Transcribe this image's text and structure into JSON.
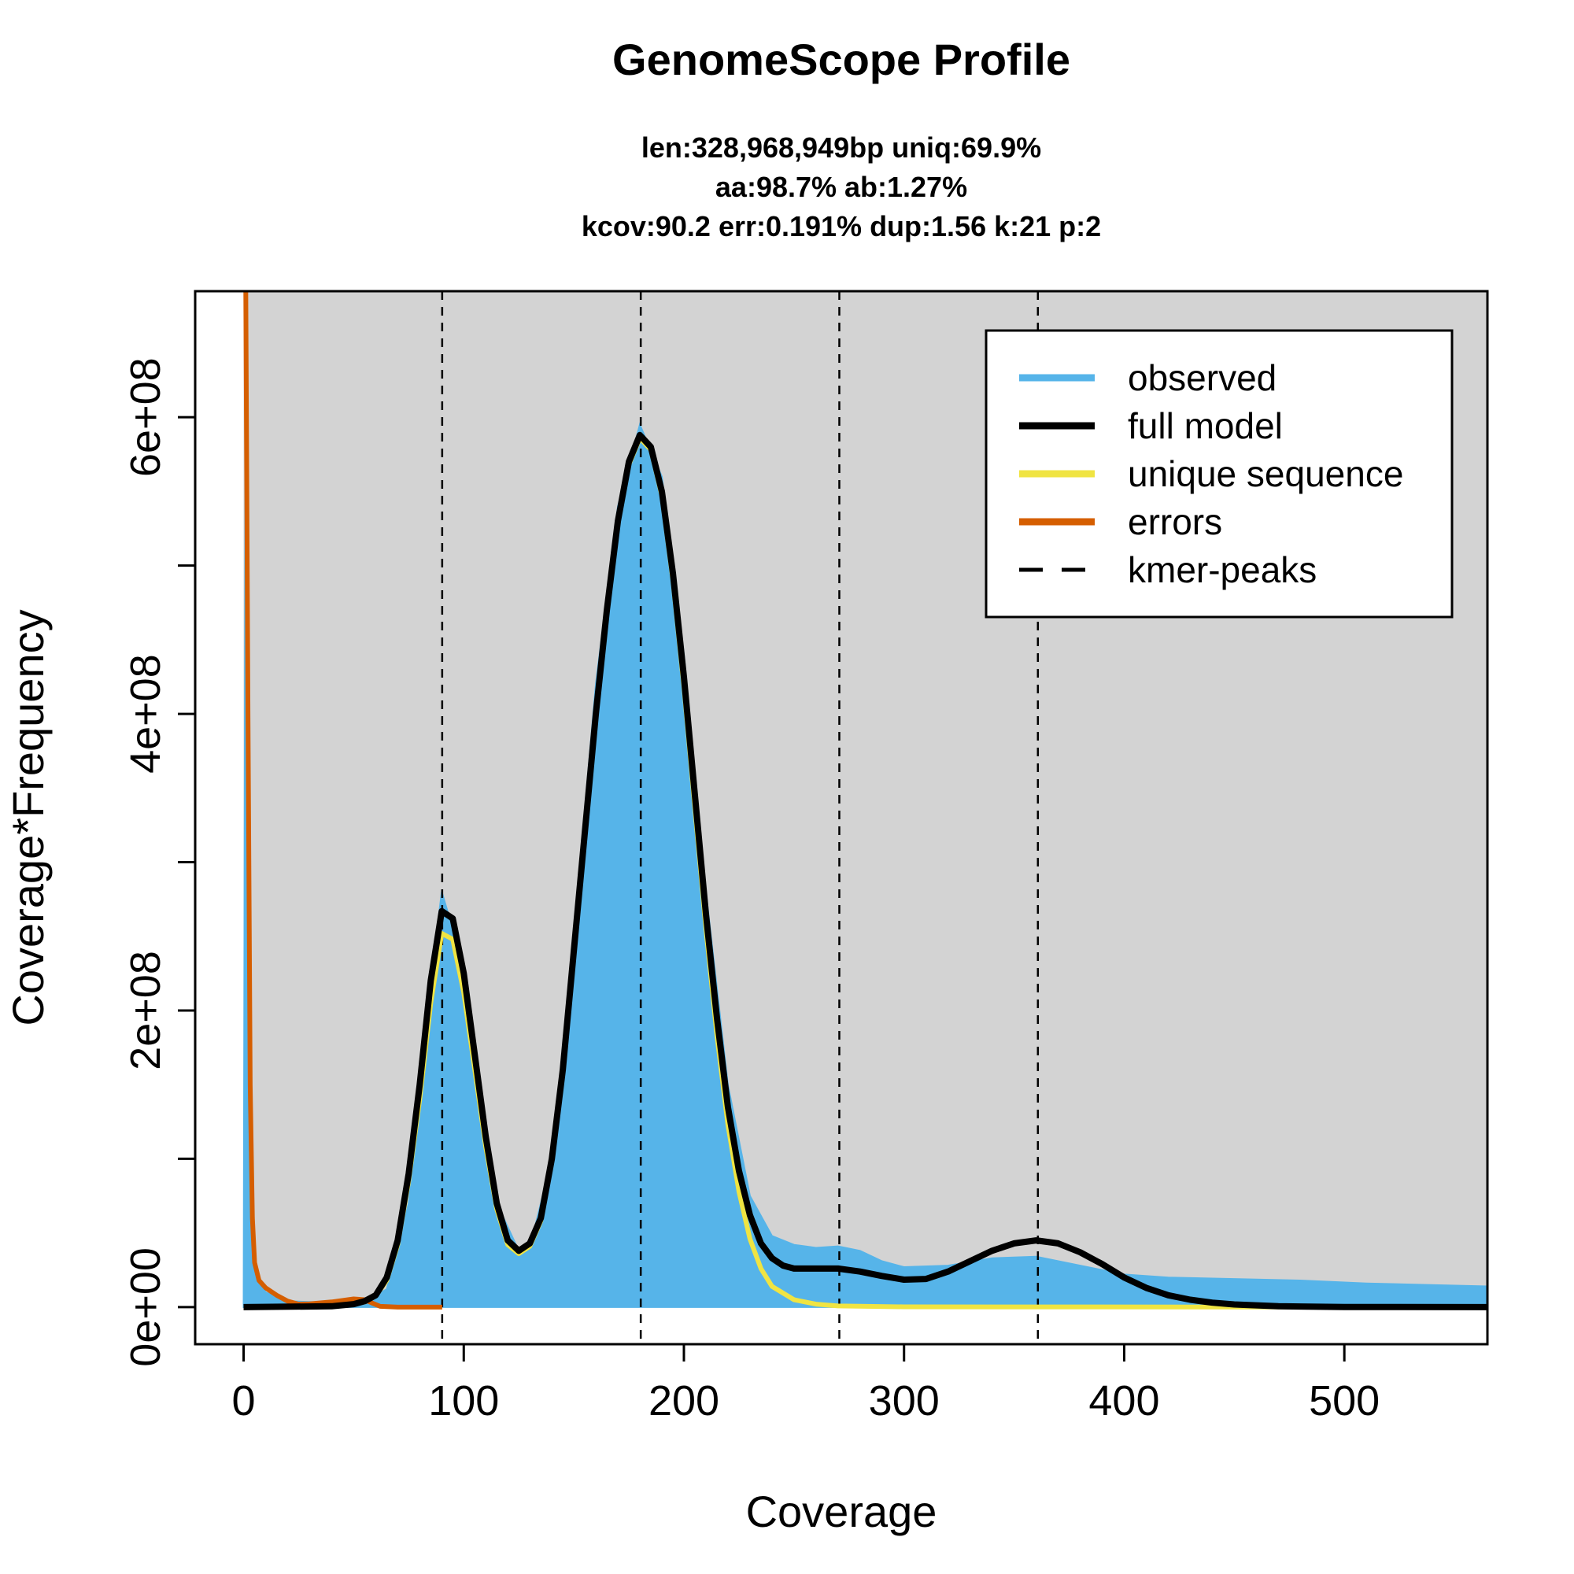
{
  "chart_data": {
    "type": "area",
    "title": "GenomeScope Profile",
    "subtitle_lines": [
      "len:328,968,949bp uniq:69.9%",
      "aa:98.7% ab:1.27%",
      "kcov:90.2 err:0.191%  dup:1.56  k:21 p:2"
    ],
    "xlabel": "Coverage",
    "ylabel": "Coverage*Frequency",
    "xlim": [
      -22,
      565
    ],
    "ylim": [
      -25000000,
      685000000
    ],
    "x_ticks": [
      0,
      100,
      200,
      300,
      400,
      500
    ],
    "x_tick_labels": [
      "0",
      "100",
      "200",
      "300",
      "400",
      "500"
    ],
    "y_ticks": [
      0,
      100000000,
      200000000,
      300000000,
      400000000,
      500000000,
      600000000
    ],
    "y_tick_labels": [
      "0e+00",
      "",
      "2e+08",
      "",
      "4e+08",
      "",
      "6e+08"
    ],
    "background": "#d3d3d3",
    "colors": {
      "observed": "#56b4e9",
      "full_model": "#000000",
      "unique_sequence": "#f0e442",
      "errors": "#d55e00",
      "kmer_peaks": "#000000"
    },
    "kmer_peaks": [
      90.2,
      180.4,
      270.6,
      360.8
    ],
    "series": [
      {
        "name": "observed",
        "style": "filled-area",
        "points": [
          [
            0,
            0
          ],
          [
            1,
            700000000
          ],
          [
            3,
            80000000
          ],
          [
            6,
            20000000
          ],
          [
            10,
            10000000
          ],
          [
            20,
            4000000
          ],
          [
            40,
            3000000
          ],
          [
            55,
            4000000
          ],
          [
            65,
            12000000
          ],
          [
            75,
            70000000
          ],
          [
            85,
            220000000
          ],
          [
            90,
            280000000
          ],
          [
            95,
            255000000
          ],
          [
            105,
            165000000
          ],
          [
            115,
            70000000
          ],
          [
            125,
            38000000
          ],
          [
            130,
            40000000
          ],
          [
            140,
            100000000
          ],
          [
            150,
            250000000
          ],
          [
            160,
            420000000
          ],
          [
            170,
            540000000
          ],
          [
            180,
            595000000
          ],
          [
            190,
            560000000
          ],
          [
            200,
            440000000
          ],
          [
            210,
            280000000
          ],
          [
            220,
            150000000
          ],
          [
            230,
            75000000
          ],
          [
            240,
            48000000
          ],
          [
            250,
            42000000
          ],
          [
            260,
            40000000
          ],
          [
            270,
            41000000
          ],
          [
            280,
            38000000
          ],
          [
            290,
            31000000
          ],
          [
            300,
            27000000
          ],
          [
            320,
            28000000
          ],
          [
            340,
            33000000
          ],
          [
            360,
            34000000
          ],
          [
            380,
            28000000
          ],
          [
            400,
            22000000
          ],
          [
            420,
            20000000
          ],
          [
            450,
            19000000
          ],
          [
            480,
            18000000
          ],
          [
            510,
            16000000
          ],
          [
            565,
            14000000
          ]
        ]
      },
      {
        "name": "full model",
        "style": "line",
        "points": [
          [
            0,
            0
          ],
          [
            40,
            600000
          ],
          [
            50,
            2000000
          ],
          [
            55,
            4000000
          ],
          [
            60,
            8000000
          ],
          [
            65,
            20000000
          ],
          [
            70,
            45000000
          ],
          [
            75,
            90000000
          ],
          [
            80,
            150000000
          ],
          [
            85,
            220000000
          ],
          [
            90,
            267000000
          ],
          [
            95,
            262000000
          ],
          [
            100,
            225000000
          ],
          [
            105,
            170000000
          ],
          [
            110,
            115000000
          ],
          [
            115,
            70000000
          ],
          [
            120,
            45000000
          ],
          [
            125,
            38000000
          ],
          [
            130,
            43000000
          ],
          [
            135,
            60000000
          ],
          [
            140,
            100000000
          ],
          [
            145,
            160000000
          ],
          [
            150,
            240000000
          ],
          [
            155,
            320000000
          ],
          [
            160,
            400000000
          ],
          [
            165,
            470000000
          ],
          [
            170,
            530000000
          ],
          [
            175,
            570000000
          ],
          [
            180,
            588000000
          ],
          [
            185,
            580000000
          ],
          [
            190,
            550000000
          ],
          [
            195,
            495000000
          ],
          [
            200,
            425000000
          ],
          [
            205,
            345000000
          ],
          [
            210,
            265000000
          ],
          [
            215,
            195000000
          ],
          [
            220,
            135000000
          ],
          [
            225,
            92000000
          ],
          [
            230,
            62000000
          ],
          [
            235,
            43000000
          ],
          [
            240,
            33000000
          ],
          [
            245,
            28000000
          ],
          [
            250,
            26000000
          ],
          [
            260,
            26000000
          ],
          [
            270,
            26000000
          ],
          [
            280,
            24000000
          ],
          [
            290,
            21000000
          ],
          [
            300,
            18500000
          ],
          [
            310,
            19000000
          ],
          [
            320,
            24000000
          ],
          [
            330,
            31000000
          ],
          [
            340,
            38000000
          ],
          [
            350,
            43000000
          ],
          [
            360,
            45000000
          ],
          [
            370,
            43000000
          ],
          [
            380,
            37000000
          ],
          [
            390,
            29000000
          ],
          [
            400,
            20000000
          ],
          [
            410,
            13000000
          ],
          [
            420,
            8000000
          ],
          [
            430,
            5000000
          ],
          [
            440,
            3000000
          ],
          [
            450,
            1800000
          ],
          [
            470,
            600000
          ],
          [
            500,
            100000
          ],
          [
            565,
            0
          ]
        ]
      },
      {
        "name": "unique sequence",
        "style": "line",
        "points": [
          [
            0,
            0
          ],
          [
            40,
            500000
          ],
          [
            50,
            1800000
          ],
          [
            55,
            3500000
          ],
          [
            60,
            7500000
          ],
          [
            65,
            18000000
          ],
          [
            70,
            42000000
          ],
          [
            75,
            85000000
          ],
          [
            80,
            140000000
          ],
          [
            85,
            205000000
          ],
          [
            90,
            252000000
          ],
          [
            95,
            248000000
          ],
          [
            100,
            212000000
          ],
          [
            105,
            160000000
          ],
          [
            110,
            108000000
          ],
          [
            115,
            66000000
          ],
          [
            120,
            42000000
          ],
          [
            125,
            36000000
          ],
          [
            130,
            41000000
          ],
          [
            135,
            58000000
          ],
          [
            140,
            98000000
          ],
          [
            145,
            158000000
          ],
          [
            150,
            238000000
          ],
          [
            155,
            318000000
          ],
          [
            160,
            398000000
          ],
          [
            165,
            468000000
          ],
          [
            170,
            528000000
          ],
          [
            175,
            568000000
          ],
          [
            180,
            586000000
          ],
          [
            185,
            578000000
          ],
          [
            190,
            547000000
          ],
          [
            195,
            490000000
          ],
          [
            200,
            418000000
          ],
          [
            205,
            336000000
          ],
          [
            210,
            255000000
          ],
          [
            215,
            183000000
          ],
          [
            220,
            123000000
          ],
          [
            225,
            78000000
          ],
          [
            230,
            46000000
          ],
          [
            235,
            26000000
          ],
          [
            240,
            14000000
          ],
          [
            250,
            5000000
          ],
          [
            260,
            2000000
          ],
          [
            270,
            800000
          ],
          [
            300,
            200000
          ],
          [
            565,
            0
          ]
        ]
      },
      {
        "name": "errors",
        "style": "line",
        "points": [
          [
            0,
            700000000
          ],
          [
            1,
            685000000
          ],
          [
            2,
            400000000
          ],
          [
            3,
            150000000
          ],
          [
            4,
            60000000
          ],
          [
            5,
            30000000
          ],
          [
            7,
            18000000
          ],
          [
            10,
            13000000
          ],
          [
            15,
            8000000
          ],
          [
            20,
            4000000
          ],
          [
            25,
            2000000
          ],
          [
            30,
            2200000
          ],
          [
            40,
            3500000
          ],
          [
            50,
            5500000
          ],
          [
            55,
            5000000
          ],
          [
            58,
            3000000
          ],
          [
            62,
            500000
          ],
          [
            70,
            0
          ],
          [
            90.2,
            0
          ]
        ]
      }
    ],
    "legend": {
      "position": "top-right",
      "entries": [
        "observed",
        "full model",
        "unique sequence",
        "errors",
        "kmer-peaks"
      ]
    }
  }
}
